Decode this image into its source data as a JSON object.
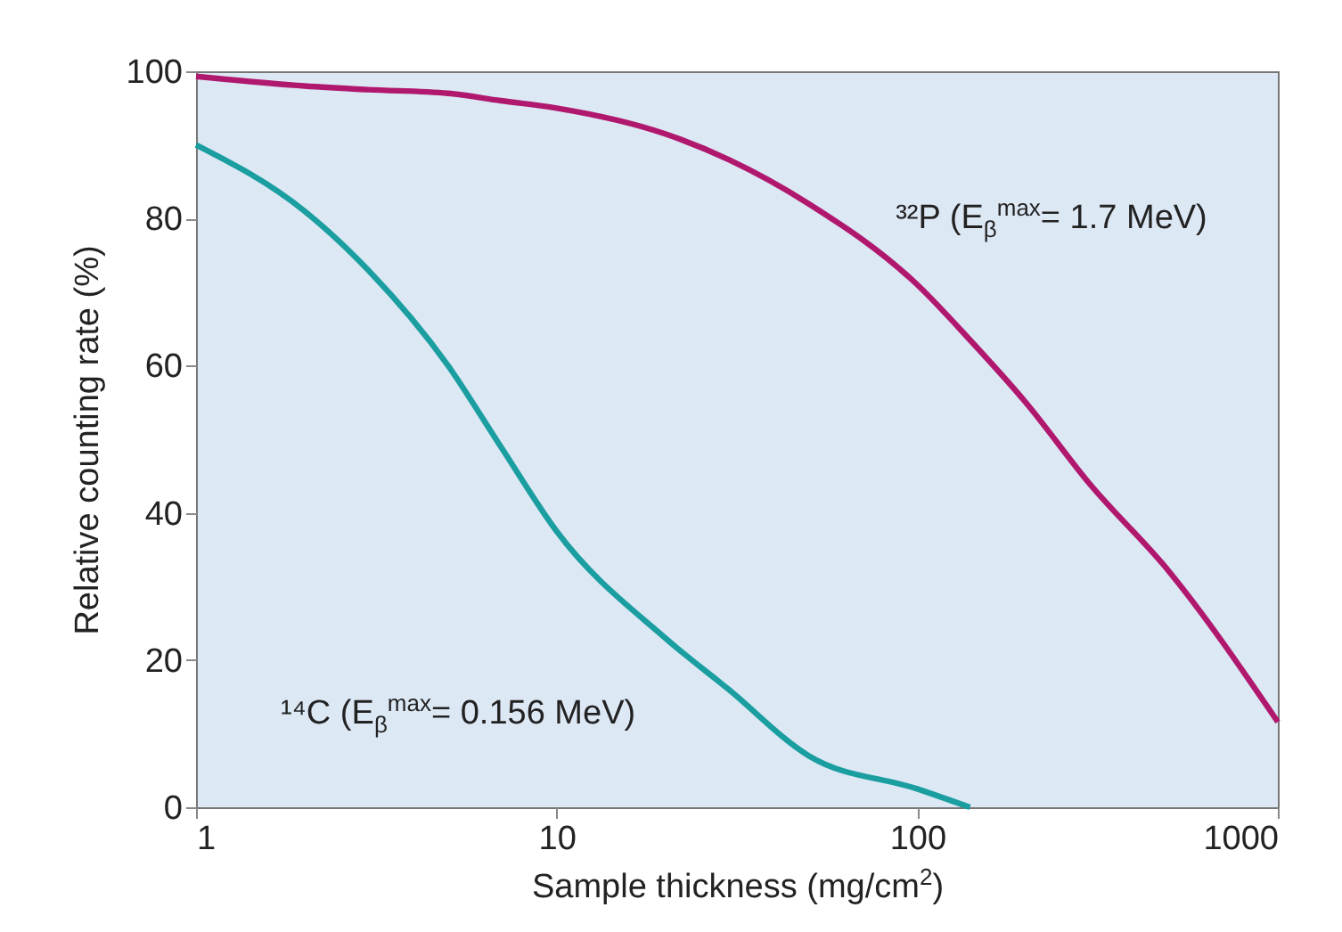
{
  "chart_data": {
    "type": "line",
    "xlabel": "Sample thickness (mg/cm$^{2}$)",
    "ylabel": "Relative counting rate (%)",
    "log": "x",
    "xlim": [
      1,
      1000
    ],
    "ylim": [
      0,
      100
    ],
    "xticks": [
      1,
      10,
      100,
      1000
    ],
    "yticks": [
      0,
      20,
      40,
      60,
      80,
      100
    ],
    "x": [
      1,
      2,
      3,
      5,
      7,
      10,
      20,
      30,
      50,
      100,
      140,
      200,
      300,
      500,
      1000
    ],
    "series": [
      {
        "color": "#b0186e",
        "values": [
          99.3,
          98,
          97.5,
          97,
          96,
          95,
          91.5,
          88,
          82,
          71,
          63.5,
          55,
          44,
          32,
          11.6
        ]
      },
      {
        "color": "#1a9ea0",
        "values": [
          90,
          81,
          73,
          60,
          49,
          37.5,
          23,
          16,
          7,
          2.5,
          0,
          null,
          null,
          null,
          null
        ]
      }
    ],
    "annotations": [
      "³²P (E$_{β}$$^{max}$= 1.7 MeV)",
      "¹⁴C (E$_{β}$$^{max}$= 0.156 MeV)"
    ]
  }
}
